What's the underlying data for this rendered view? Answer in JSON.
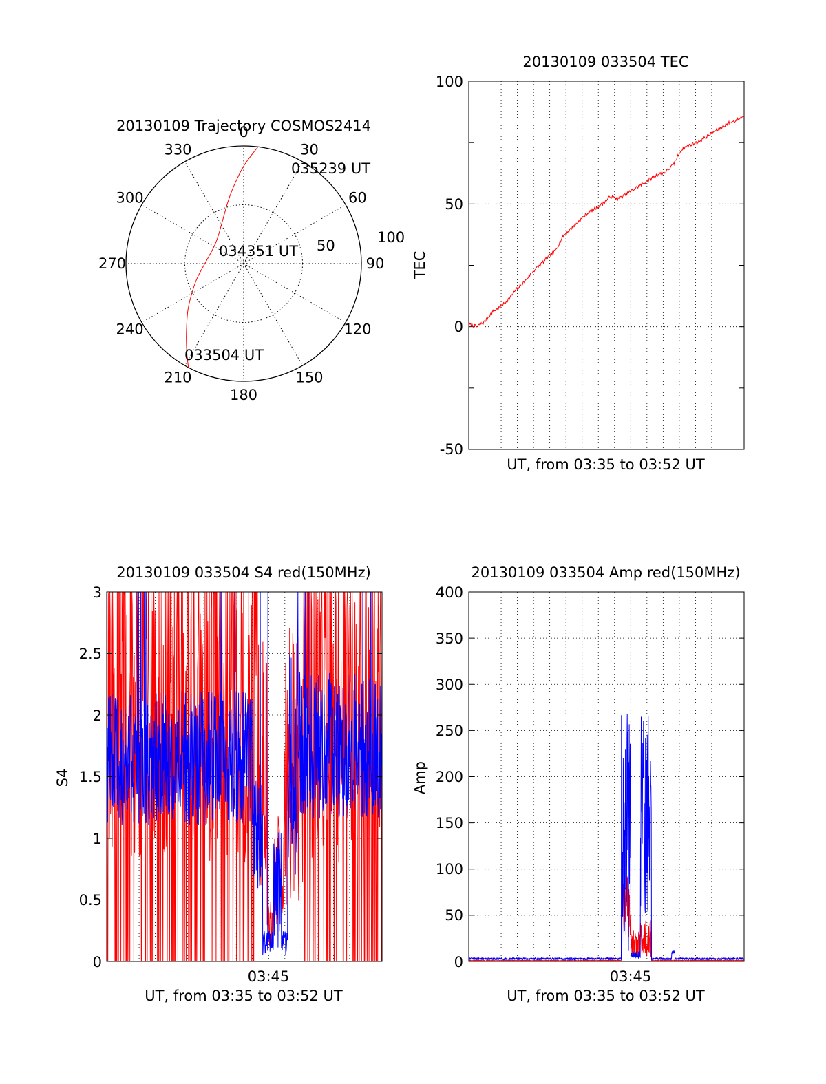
{
  "colors": {
    "red": "#ff0000",
    "blue": "#0000ff",
    "axis": "#000000",
    "grid": "#000000"
  },
  "chart_data": [
    {
      "id": "trajectory",
      "type": "polar",
      "title": "20130109 Trajectory COSMOS2414",
      "azimuth_labels": [
        "0",
        "30",
        "60",
        "90",
        "120",
        "150",
        "180",
        "210",
        "240",
        "270",
        "300",
        "330"
      ],
      "radial_labels": [
        "50",
        "100"
      ],
      "grid": true,
      "track": {
        "color": "red",
        "points": [
          {
            "az": 208,
            "zen": 90
          },
          {
            "az": 212,
            "zen": 82
          },
          {
            "az": 217,
            "zen": 73
          },
          {
            "az": 223,
            "zen": 64
          },
          {
            "az": 231,
            "zen": 55
          },
          {
            "az": 240,
            "zen": 46
          },
          {
            "az": 252,
            "zen": 38
          },
          {
            "az": 266,
            "zen": 31
          },
          {
            "az": 283,
            "zen": 27
          },
          {
            "az": 300,
            "zen": 26
          },
          {
            "az": 315,
            "zen": 28
          },
          {
            "az": 328,
            "zen": 33
          },
          {
            "az": 338,
            "zen": 40
          },
          {
            "az": 345,
            "zen": 48
          },
          {
            "az": 351,
            "zen": 57
          },
          {
            "az": 356,
            "zen": 66
          },
          {
            "az": 0,
            "zen": 75
          },
          {
            "az": 4,
            "zen": 83
          },
          {
            "az": 7,
            "zen": 90
          }
        ]
      },
      "annotations": [
        {
          "text": "035239 UT",
          "az": 30,
          "zen": 75
        },
        {
          "text": "034351 UT",
          "az": 10,
          "zen": 12
        },
        {
          "text": "033504 UT",
          "az": 215,
          "zen": 88
        }
      ]
    },
    {
      "id": "tec",
      "type": "line",
      "title": "20130109 033504 TEC",
      "xlabel": "UT, from 03:35 to 03:52 UT",
      "ylabel": "TEC",
      "xlim": [
        "03:35:04",
        "03:52:39"
      ],
      "ylim": [
        -50,
        100
      ],
      "yticks": [
        "100",
        "50",
        "0",
        "-50"
      ],
      "grid": true,
      "series": [
        {
          "color": "red",
          "x": [
            0,
            0.5,
            1,
            1.5,
            2,
            2.5,
            3,
            3.5,
            4,
            4.5,
            5,
            5.5,
            6,
            6.5,
            7,
            7.5,
            8,
            8.5,
            9,
            9.5,
            10,
            10.5,
            11,
            11.5,
            12,
            12.5,
            13,
            13.5,
            14,
            14.5,
            15,
            15.5,
            16,
            16.5,
            17,
            17.5
          ],
          "y": [
            1,
            0,
            2,
            6,
            8,
            11,
            15,
            18,
            22,
            25,
            28,
            31,
            37,
            40,
            43,
            46,
            48,
            50,
            53,
            52,
            54,
            56,
            58,
            60,
            62,
            63,
            66,
            72,
            74,
            75,
            77,
            79,
            81,
            83,
            84,
            86
          ]
        }
      ]
    },
    {
      "id": "s4",
      "type": "line",
      "title": "20130109 033504 S4 red(150MHz)",
      "xlabel": "UT, from 03:35 to 03:52 UT",
      "ylabel": "S4",
      "xtick": "03:45",
      "xlim": [
        "03:35:04",
        "03:52:39"
      ],
      "ylim": [
        0,
        3
      ],
      "yticks": [
        "3",
        "2.5",
        "2",
        "1.5",
        "1",
        "0.5",
        "0"
      ],
      "grid": true,
      "series": [
        {
          "color": "red",
          "description_values": "noisy, 0–3 until 03:45, dips 0.1–1 between 03:45 and 03:47, noisy 0–3 after 03:48"
        },
        {
          "color": "blue",
          "description_values": "mean ≈1.6 until 03:45, drops to ≈0.1 near 03:45–03:47, ≈1.7 after 03:48"
        }
      ]
    },
    {
      "id": "amp",
      "type": "line",
      "title": "20130109 033504 Amp red(150MHz)",
      "xlabel": "UT, from 03:35 to 03:52 UT",
      "ylabel": "Amp",
      "xtick": "03:45",
      "xlim": [
        "03:35:04",
        "03:52:39"
      ],
      "ylim": [
        0,
        400
      ],
      "yticks": [
        "400",
        "350",
        "300",
        "250",
        "200",
        "150",
        "100",
        "50",
        "0"
      ],
      "grid": true,
      "series": [
        {
          "color": "blue",
          "description_values": "≈2 baseline; bursts to ≈270 near 03:45:00–03:45:30 and ≈270 near 03:46:30–03:47:00"
        },
        {
          "color": "red",
          "description_values": "≈0 baseline; ≈100 near 03:45, ≈50 near 03:46:40"
        }
      ]
    }
  ]
}
